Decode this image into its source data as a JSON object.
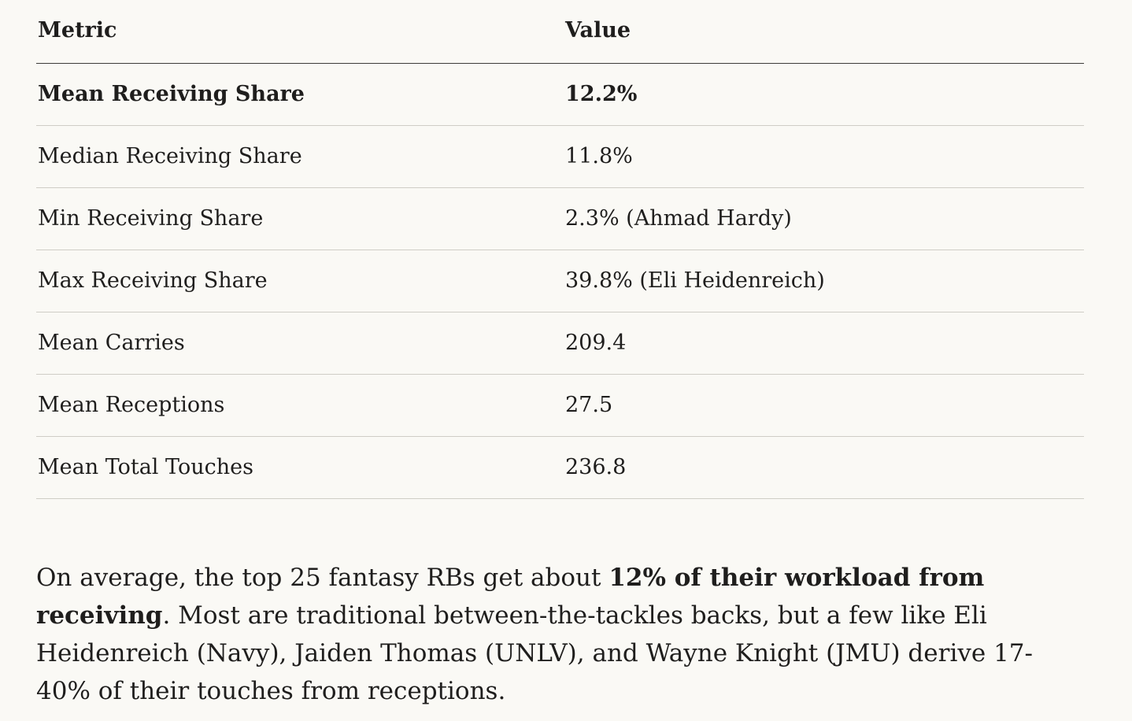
{
  "table": {
    "headers": [
      "Metric",
      "Value"
    ],
    "rows": [
      {
        "metric": "Mean Receiving Share",
        "value": "12.2%",
        "bold": true
      },
      {
        "metric": "Median Receiving Share",
        "value": "11.8%",
        "bold": false
      },
      {
        "metric": "Min Receiving Share",
        "value": "2.3% (Ahmad Hardy)",
        "bold": false
      },
      {
        "metric": "Max Receiving Share",
        "value": "39.8% (Eli Heidenreich)",
        "bold": false
      },
      {
        "metric": "Mean Carries",
        "value": "209.4",
        "bold": false
      },
      {
        "metric": "Mean Receptions",
        "value": "27.5",
        "bold": false
      },
      {
        "metric": "Mean Total Touches",
        "value": "236.8",
        "bold": false
      }
    ]
  },
  "summary": {
    "before": "On average, the top 25 fantasy RBs get about ",
    "emphasis": "12% of their workload from receiving",
    "after": ". Most are traditional between-the-tackles backs, but a few like Eli Heidenreich (Navy), Jaiden Thomas (UNLV), and Wayne Knight (JMU) derive 17-40% of their touches from receptions."
  },
  "colors": {
    "background": "#faf9f5",
    "text": "#1f1e1d",
    "header_rule": "#3d3c39",
    "row_rule": "#cfcdc6"
  }
}
